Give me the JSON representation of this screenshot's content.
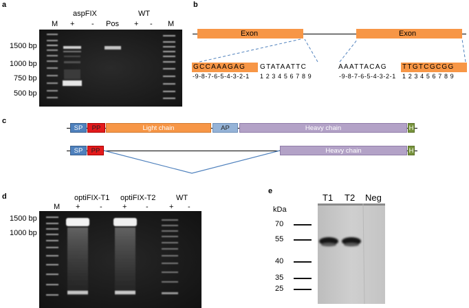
{
  "panel_a": {
    "label": "a",
    "group_aspfix": "aspFIX",
    "group_wt": "WT",
    "lanes": [
      "M",
      "+",
      "-",
      "Pos",
      "+",
      "-",
      "M"
    ],
    "size_markers": [
      "1500 bp",
      "1000 bp",
      "750 bp",
      "500 bp"
    ]
  },
  "panel_b": {
    "label": "b",
    "exon_left": "Exon",
    "exon_right": "Exon",
    "seq_left_exon": "GCCAAAGAG",
    "seq_left_intron": "GTATAATTC",
    "nums_left_neg": "-9-8-7-6-5-4-3-2-1",
    "nums_left_pos": "1 2 3 4 5 6 7 8 9",
    "seq_right_intron": "AAATTACAG",
    "seq_right_exon": "TTGTCGCGG",
    "nums_right_neg": "-9-8-7-6-5-4-3-2-1",
    "nums_right_pos": "1 2 3 4 5 6 7 8 9"
  },
  "panel_c": {
    "label": "c",
    "row1": [
      "SP",
      "PP",
      "Light chain",
      "AP",
      "Heavy chain",
      "H"
    ],
    "row2": [
      "SP",
      "PP",
      "Heavy chain",
      "H"
    ],
    "colors": {
      "sp": "#4f81bd",
      "pp": "#e31a1c",
      "light": "#f79646",
      "ap": "#95b3d7",
      "heavy": "#b3a2c7",
      "h": "#77933c"
    }
  },
  "panel_d": {
    "label": "d",
    "groups": [
      "optiFIX-T1",
      "optiFIX-T2",
      "WT"
    ],
    "lanes": [
      "M",
      "+",
      "-",
      "+",
      "-",
      "+",
      "-"
    ],
    "size_markers": [
      "1500 bp",
      "1000 bp"
    ]
  },
  "panel_e": {
    "label": "e",
    "unit": "kDa",
    "lanes": [
      "T1",
      "T2",
      "Neg"
    ],
    "markers": [
      "70",
      "55",
      "40",
      "35",
      "25"
    ]
  }
}
